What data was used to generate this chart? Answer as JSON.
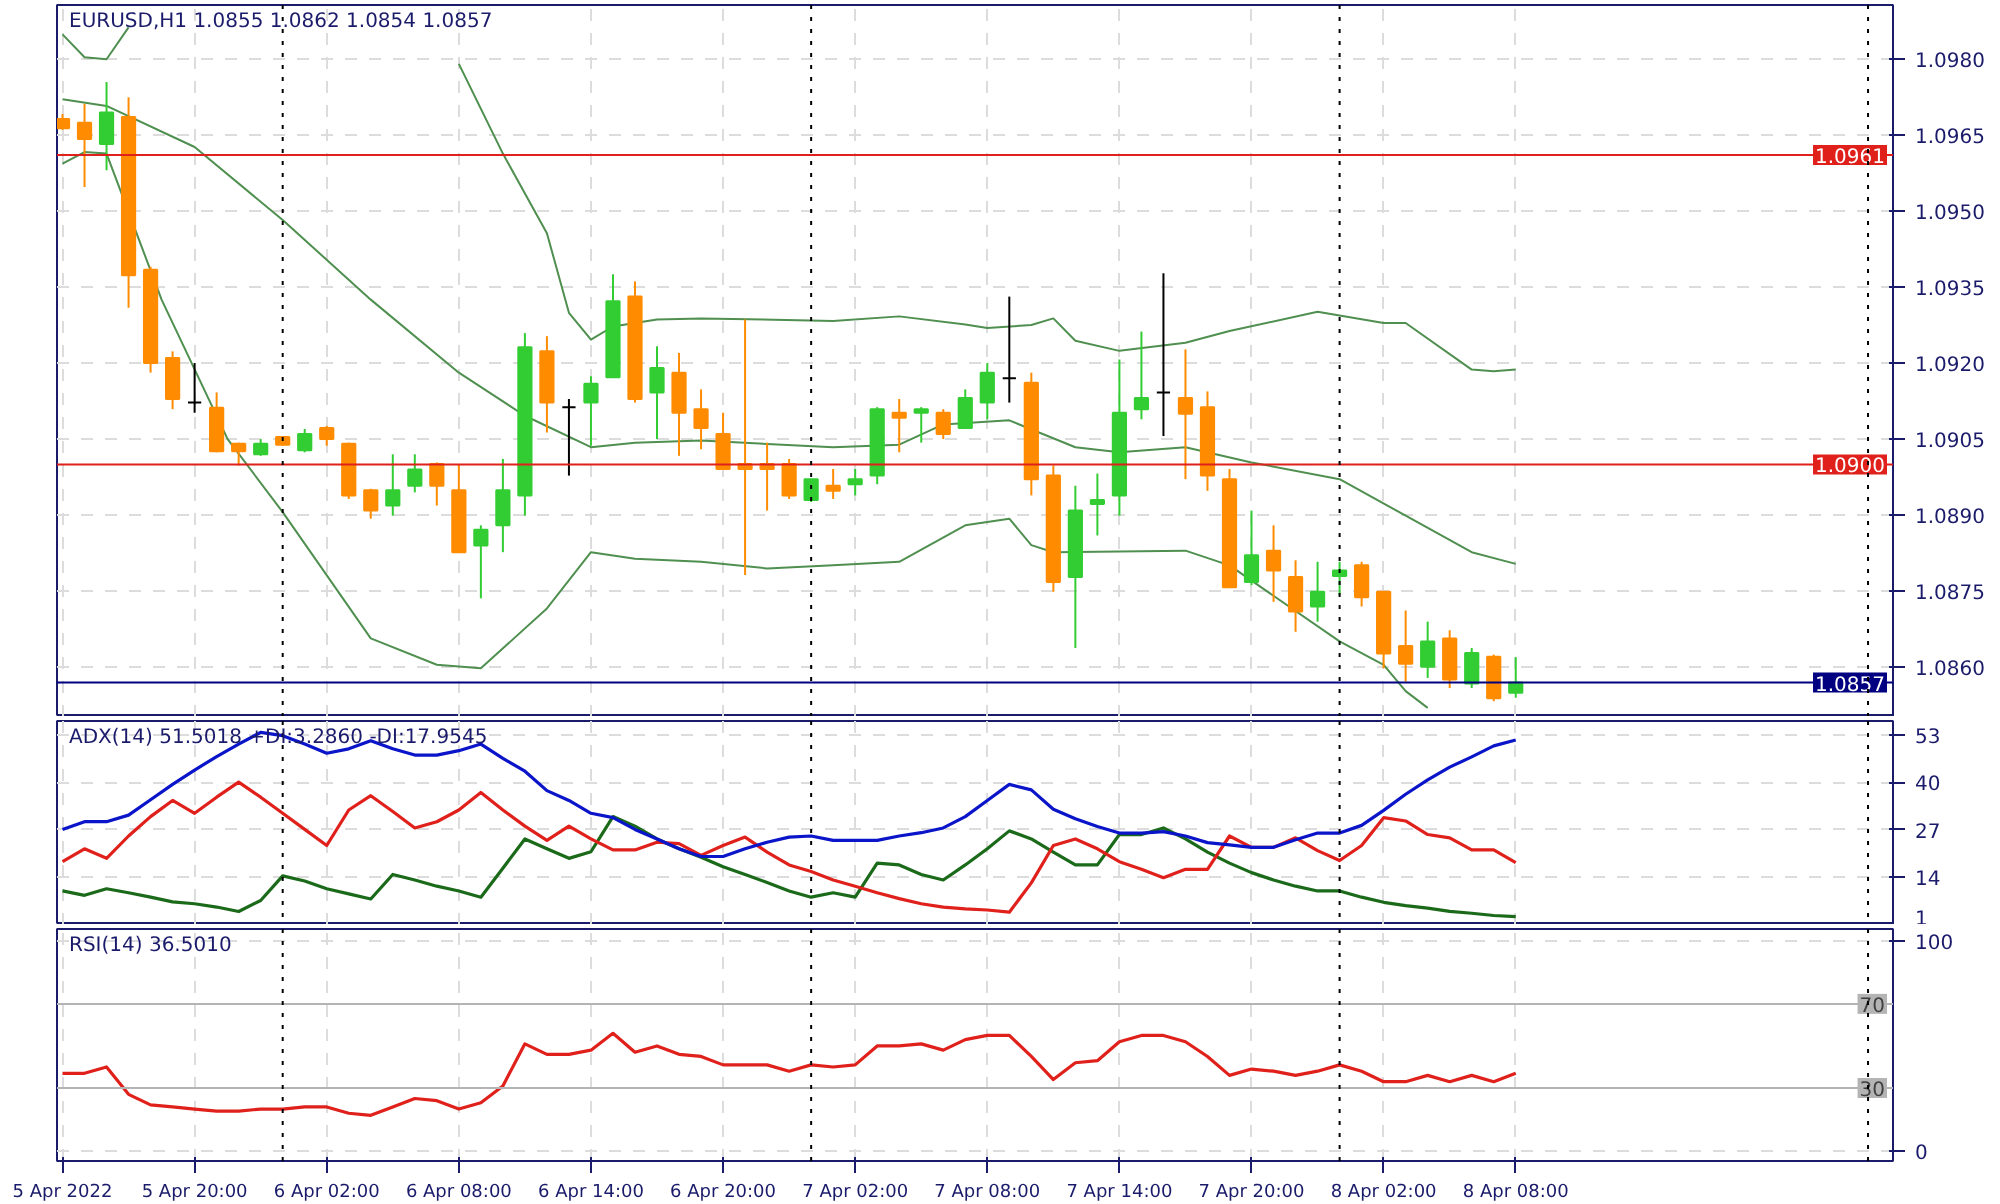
{
  "chart_data": [
    {
      "type": "candlestick",
      "title": "EURUSD,H1  1.0855 1.0862 1.0854 1.0857",
      "x": [
        "2022-04-05T14:00",
        "2022-04-05T15:00",
        "2022-04-05T16:00",
        "2022-04-05T17:00",
        "2022-04-05T18:00",
        "2022-04-05T19:00",
        "2022-04-05T20:00",
        "2022-04-05T21:00",
        "2022-04-05T22:00",
        "2022-04-05T23:00",
        "2022-04-06T00:00",
        "2022-04-06T01:00",
        "2022-04-06T02:00",
        "2022-04-06T03:00",
        "2022-04-06T04:00",
        "2022-04-06T05:00",
        "2022-04-06T06:00",
        "2022-04-06T07:00",
        "2022-04-06T08:00",
        "2022-04-06T09:00",
        "2022-04-06T10:00",
        "2022-04-06T11:00",
        "2022-04-06T12:00",
        "2022-04-06T13:00",
        "2022-04-06T14:00",
        "2022-04-06T15:00",
        "2022-04-06T16:00",
        "2022-04-06T17:00",
        "2022-04-06T18:00",
        "2022-04-06T19:00",
        "2022-04-06T20:00",
        "2022-04-06T21:00",
        "2022-04-06T22:00",
        "2022-04-06T23:00",
        "2022-04-07T00:00",
        "2022-04-07T01:00",
        "2022-04-07T02:00",
        "2022-04-07T03:00",
        "2022-04-07T04:00",
        "2022-04-07T05:00",
        "2022-04-07T06:00",
        "2022-04-07T07:00",
        "2022-04-07T08:00",
        "2022-04-07T09:00",
        "2022-04-07T10:00",
        "2022-04-07T11:00",
        "2022-04-07T12:00",
        "2022-04-07T13:00",
        "2022-04-07T14:00",
        "2022-04-07T15:00",
        "2022-04-07T16:00",
        "2022-04-07T17:00",
        "2022-04-07T18:00",
        "2022-04-07T19:00",
        "2022-04-07T20:00",
        "2022-04-07T21:00",
        "2022-04-07T22:00",
        "2022-04-07T23:00",
        "2022-04-08T00:00",
        "2022-04-08T01:00",
        "2022-04-08T02:00",
        "2022-04-08T03:00",
        "2022-04-08T04:00",
        "2022-04-08T05:00",
        "2022-04-08T06:00",
        "2022-04-08T07:00",
        "2022-04-08T08:00"
      ],
      "ohlc": [
        [
          1.09681,
          1.09691,
          1.0966,
          1.09663
        ],
        [
          1.09674,
          1.09711,
          1.09547,
          1.09642
        ],
        [
          1.09632,
          1.09754,
          1.0958,
          1.09694
        ],
        [
          1.09685,
          1.09724,
          1.09309,
          1.09373
        ],
        [
          1.09384,
          1.0939,
          1.09181,
          1.092
        ],
        [
          1.0921,
          1.09223,
          1.09109,
          1.09129
        ],
        [
          1.09122,
          1.092,
          1.09102,
          1.09122
        ],
        [
          1.09112,
          1.09142,
          1.09024,
          1.09026
        ],
        [
          1.09041,
          1.09043,
          1.08998,
          1.09026
        ],
        [
          1.0902,
          1.0905,
          1.09017,
          1.09041
        ],
        [
          1.09054,
          1.09056,
          1.09037,
          1.09039
        ],
        [
          1.09028,
          1.0907,
          1.09024,
          1.0906
        ],
        [
          1.09072,
          1.09076,
          1.09037,
          1.0905
        ],
        [
          1.09041,
          1.09043,
          1.08932,
          1.08939
        ],
        [
          1.08949,
          1.08952,
          1.08893,
          1.08909
        ],
        [
          1.08919,
          1.0902,
          1.08899,
          1.08949
        ],
        [
          1.08958,
          1.0902,
          1.08945,
          1.0899
        ],
        [
          1.09001,
          1.09004,
          1.08919,
          1.08958
        ],
        [
          1.08949,
          1.09001,
          1.08827,
          1.08827
        ],
        [
          1.0884,
          1.0888,
          1.08736,
          1.08871
        ],
        [
          1.0888,
          1.09011,
          1.08827,
          1.08949
        ],
        [
          1.08939,
          1.09259,
          1.08899,
          1.09231
        ],
        [
          1.09223,
          1.09253,
          1.09063,
          1.09122
        ],
        [
          1.09113,
          1.09129,
          1.08978,
          1.09113
        ],
        [
          1.09122,
          1.09174,
          1.09037,
          1.09159
        ],
        [
          1.09172,
          1.09375,
          1.09172,
          1.09322
        ],
        [
          1.09331,
          1.09361,
          1.09122,
          1.09129
        ],
        [
          1.09142,
          1.09233,
          1.0905,
          1.0919
        ],
        [
          1.09181,
          1.0922,
          1.09017,
          1.09102
        ],
        [
          1.09109,
          1.09148,
          1.0903,
          1.09072
        ],
        [
          1.0906,
          1.09102,
          1.08991,
          1.08991
        ],
        [
          1.09001,
          1.09286,
          1.08782,
          1.08991
        ],
        [
          1.09001,
          1.09043,
          1.08909,
          1.08991
        ],
        [
          1.09001,
          1.09011,
          1.08932,
          1.08939
        ],
        [
          1.0893,
          1.08971,
          1.08926,
          1.08971
        ],
        [
          1.08958,
          1.08991,
          1.08932,
          1.08948
        ],
        [
          1.08961,
          1.08991,
          1.08939,
          1.08971
        ],
        [
          1.08978,
          1.09113,
          1.08961,
          1.09109
        ],
        [
          1.09102,
          1.09129,
          1.09024,
          1.09092
        ],
        [
          1.09102,
          1.09113,
          1.09043,
          1.09109
        ],
        [
          1.09102,
          1.09109,
          1.0905,
          1.0906
        ],
        [
          1.09072,
          1.09148,
          1.0907,
          1.09131
        ],
        [
          1.09122,
          1.092,
          1.09089,
          1.09181
        ],
        [
          1.0917,
          1.09331,
          1.09122,
          1.0917
        ],
        [
          1.09161,
          1.09181,
          1.08939,
          1.08971
        ],
        [
          1.08978,
          1.08998,
          1.08749,
          1.08768
        ],
        [
          1.08778,
          1.08958,
          1.08638,
          1.08909
        ],
        [
          1.08922,
          1.08982,
          1.0886,
          1.0893
        ],
        [
          1.08939,
          1.09207,
          1.08899,
          1.09102
        ],
        [
          1.09109,
          1.09262,
          1.09089,
          1.09131
        ],
        [
          1.09142,
          1.09377,
          1.09056,
          1.09142
        ],
        [
          1.09131,
          1.09227,
          1.08971,
          1.091
        ],
        [
          1.09113,
          1.09144,
          1.08948,
          1.08978
        ],
        [
          1.08971,
          1.08991,
          1.08758,
          1.08758
        ],
        [
          1.08768,
          1.08909,
          1.08762,
          1.08821
        ],
        [
          1.0883,
          1.0888,
          1.08729,
          1.08791
        ],
        [
          1.08778,
          1.08811,
          1.0867,
          1.0871
        ],
        [
          1.0872,
          1.08808,
          1.0869,
          1.08749
        ],
        [
          1.0878,
          1.08808,
          1.08742,
          1.08791
        ],
        [
          1.08801,
          1.08808,
          1.0872,
          1.08738
        ],
        [
          1.08749,
          1.08749,
          1.08598,
          1.08627
        ],
        [
          1.08642,
          1.08712,
          1.08572,
          1.08607
        ],
        [
          1.08601,
          1.0869,
          1.08579,
          1.08651
        ],
        [
          1.08657,
          1.08673,
          1.08559,
          1.08576
        ],
        [
          1.08568,
          1.08638,
          1.08559,
          1.08628
        ],
        [
          1.08621,
          1.08625,
          1.08533,
          1.08539
        ],
        [
          1.0855,
          1.0862,
          1.0854,
          1.0857
        ]
      ],
      "colors": [
        "#ff8c00",
        "#ff8c00",
        "#32cd32",
        "#ff8c00",
        "#ff8c00",
        "#ff8c00",
        "#000000",
        "#ff8c00",
        "#ff8c00",
        "#32cd32",
        "#ff8c00",
        "#32cd32",
        "#ff8c00",
        "#ff8c00",
        "#ff8c00",
        "#32cd32",
        "#32cd32",
        "#ff8c00",
        "#ff8c00",
        "#32cd32",
        "#32cd32",
        "#32cd32",
        "#ff8c00",
        "#000000",
        "#32cd32",
        "#32cd32",
        "#ff8c00",
        "#32cd32",
        "#ff8c00",
        "#ff8c00",
        "#ff8c00",
        "#ff8c00",
        "#ff8c00",
        "#ff8c00",
        "#32cd32",
        "#ff8c00",
        "#32cd32",
        "#32cd32",
        "#ff8c00",
        "#32cd32",
        "#ff8c00",
        "#32cd32",
        "#32cd32",
        "#000000",
        "#ff8c00",
        "#ff8c00",
        "#32cd32",
        "#32cd32",
        "#32cd32",
        "#32cd32",
        "#000000",
        "#ff8c00",
        "#ff8c00",
        "#ff8c00",
        "#32cd32",
        "#ff8c00",
        "#ff8c00",
        "#32cd32",
        "#32cd32",
        "#ff8c00",
        "#ff8c00",
        "#ff8c00",
        "#32cd32",
        "#ff8c00",
        "#32cd32",
        "#ff8c00",
        "#32cd32"
      ],
      "series": [
        {
          "type": "line",
          "color": "#4f8f4f",
          "x": [
            "2022-04-05T14:00",
            "2022-04-05T15:00",
            "2022-04-05T16:00",
            "2022-04-05T17:00",
            "2022-04-05T18:00",
            "2022-04-06T00:00",
            "2022-04-06T06:00",
            "2022-04-06T08:00",
            "2022-04-06T10:00",
            "2022-04-06T12:00",
            "2022-04-06T13:00",
            "2022-04-06T14:00",
            "2022-04-06T15:00",
            "2022-04-06T17:00",
            "2022-04-06T19:00",
            "2022-04-07T01:00",
            "2022-04-07T04:00",
            "2022-04-07T07:00",
            "2022-04-07T08:00",
            "2022-04-07T10:00",
            "2022-04-07T11:00",
            "2022-04-07T12:00",
            "2022-04-07T14:00",
            "2022-04-07T17:00",
            "2022-04-07T19:00",
            "2022-04-07T23:00",
            "2022-04-08T02:00",
            "2022-04-08T03:00",
            "2022-04-08T06:00",
            "2022-04-08T07:00",
            "2022-04-08T08:00"
          ],
          "values": [
            1.09848,
            1.09803,
            1.09799,
            1.09862,
            null,
            null,
            null,
            1.0979,
            1.09613,
            1.09456,
            1.09299,
            1.09246,
            1.09272,
            1.09286,
            1.09288,
            1.09283,
            1.09292,
            1.09276,
            1.09269,
            1.09275,
            1.09288,
            1.09244,
            1.09224,
            1.0924,
            1.09263,
            1.09301,
            1.09279,
            1.09279,
            1.09187,
            1.09184,
            1.09187
          ]
        },
        {
          "type": "line",
          "color": "#4f8f4f",
          "x": [
            "2022-04-05T14:00",
            "2022-04-05T16:00",
            "2022-04-05T20:00",
            "2022-04-06T00:00",
            "2022-04-06T04:00",
            "2022-04-06T08:00",
            "2022-04-06T11:00",
            "2022-04-06T14:00",
            "2022-04-06T16:00",
            "2022-04-06T19:00",
            "2022-04-07T01:00",
            "2022-04-07T04:00",
            "2022-04-07T06:00",
            "2022-04-07T09:00",
            "2022-04-07T12:00",
            "2022-04-07T14:00",
            "2022-04-07T17:00",
            "2022-04-07T20:00",
            "2022-04-08T00:00",
            "2022-04-08T03:00",
            "2022-04-08T06:00",
            "2022-04-08T08:00"
          ],
          "values": [
            1.0972,
            1.09707,
            1.09626,
            1.09482,
            1.09325,
            1.09181,
            1.09096,
            1.09034,
            1.09043,
            1.09047,
            1.09034,
            1.09039,
            1.09079,
            1.09087,
            1.09034,
            1.09024,
            1.09034,
            1.09004,
            1.08971,
            1.08899,
            1.08827,
            1.08804
          ]
        },
        {
          "type": "line",
          "color": "#4f8f4f",
          "x": [
            "2022-04-05T14:00",
            "2022-04-05T15:00",
            "2022-04-05T16:00",
            "2022-04-05T18:30",
            "2022-04-05T21:30",
            "2022-04-06T00:00",
            "2022-04-06T04:00",
            "2022-04-06T07:00",
            "2022-04-06T09:00",
            "2022-04-06T12:00",
            "2022-04-06T14:00",
            "2022-04-06T16:00",
            "2022-04-06T19:00",
            "2022-04-06T22:00",
            "2022-04-07T01:00",
            "2022-04-07T04:00",
            "2022-04-07T07:00",
            "2022-04-07T09:00",
            "2022-04-07T10:00",
            "2022-04-07T11:00",
            "2022-04-07T17:00",
            "2022-04-07T19:00",
            "2022-04-08T00:00",
            "2022-04-08T02:00",
            "2022-04-08T03:00",
            "2022-04-08T04:00"
          ],
          "values": [
            1.09593,
            1.09616,
            1.09613,
            1.09325,
            1.0905,
            1.08906,
            1.08657,
            1.08605,
            1.08598,
            1.08716,
            1.08827,
            1.08814,
            1.08808,
            1.08795,
            1.08801,
            1.08808,
            1.0888,
            1.08893,
            1.08841,
            1.08827,
            1.0883,
            1.08801,
            1.08651,
            1.08605,
            1.08553,
            1.0852
          ]
        }
      ],
      "ylim": [
        1.08502,
        1.09906
      ],
      "yticks": [
        {
          "value": 1.086,
          "label": "1.0860"
        },
        1.0875,
        {
          "value": 1.089,
          "label": "1.0890"
        },
        1.0905,
        {
          "value": 1.092,
          "label": "1.0920"
        },
        1.0935,
        {
          "value": 1.095,
          "label": "1.0950"
        },
        1.0965,
        {
          "value": 1.098,
          "label": "1.0980"
        }
      ],
      "xlim": [
        "2022-04-05T13:45",
        "2022-04-09T01:08"
      ],
      "xticks": [
        {
          "value": "2022-04-05T14:00",
          "label": null
        },
        {
          "value": "2022-04-05T20:00",
          "label": null
        },
        {
          "value": "2022-04-06T02:00",
          "label": null
        },
        {
          "value": "2022-04-06T08:00",
          "label": null
        },
        {
          "value": "2022-04-06T14:00",
          "label": null
        },
        {
          "value": "2022-04-06T20:00",
          "label": null
        },
        {
          "value": "2022-04-07T02:00",
          "label": null
        },
        {
          "value": "2022-04-07T08:00",
          "label": null
        },
        {
          "value": "2022-04-07T14:00",
          "label": null
        },
        {
          "value": "2022-04-07T20:00",
          "label": null
        },
        {
          "value": "2022-04-08T02:00",
          "label": null
        },
        {
          "value": "2022-04-08T08:00",
          "label": null
        }
      ],
      "ref_lines": [
        {
          "axis": "y",
          "value": 1.0961,
          "label": "1.0961",
          "color": "#e0201b"
        },
        {
          "axis": "y",
          "value": 1.09,
          "label": "1.0900",
          "color": "#e0201b"
        },
        {
          "axis": "y",
          "value": 1.0857,
          "label": "1.0857",
          "color": "#000080"
        },
        {
          "axis": "x",
          "value": "2022-04-06T00:00",
          "color": "#000000",
          "line_style": "dotted"
        },
        {
          "axis": "x",
          "value": "2022-04-07T00:00",
          "color": "#000000",
          "line_style": "dotted"
        },
        {
          "axis": "x",
          "value": "2022-04-08T00:00",
          "color": "#000000",
          "line_style": "dotted"
        },
        {
          "axis": "x",
          "value": "2022-04-09T00:00",
          "color": "#000000",
          "line_style": "dotted"
        }
      ],
      "grid": true,
      "tick_labels": "y"
    },
    {
      "type": "line",
      "title": "ADX(14) 51.5018 +DI:3.2860 -DI:17.9545",
      "x": [
        "2022-04-05T14:00",
        "2022-04-05T15:00",
        "2022-04-05T16:00",
        "2022-04-05T17:00",
        "2022-04-05T18:00",
        "2022-04-05T19:00",
        "2022-04-05T20:00",
        "2022-04-05T21:00",
        "2022-04-05T22:00",
        "2022-04-05T23:00",
        "2022-04-06T00:00",
        "2022-04-06T01:00",
        "2022-04-06T02:00",
        "2022-04-06T03:00",
        "2022-04-06T04:00",
        "2022-04-06T05:00",
        "2022-04-06T06:00",
        "2022-04-06T07:00",
        "2022-04-06T08:00",
        "2022-04-06T09:00",
        "2022-04-06T10:00",
        "2022-04-06T11:00",
        "2022-04-06T12:00",
        "2022-04-06T13:00",
        "2022-04-06T14:00",
        "2022-04-06T15:00",
        "2022-04-06T16:00",
        "2022-04-06T17:00",
        "2022-04-06T18:00",
        "2022-04-06T19:00",
        "2022-04-06T20:00",
        "2022-04-06T21:00",
        "2022-04-06T22:00",
        "2022-04-06T23:00",
        "2022-04-07T00:00",
        "2022-04-07T01:00",
        "2022-04-07T02:00",
        "2022-04-07T03:00",
        "2022-04-07T04:00",
        "2022-04-07T05:00",
        "2022-04-07T06:00",
        "2022-04-07T07:00",
        "2022-04-07T08:00",
        "2022-04-07T09:00",
        "2022-04-07T10:00",
        "2022-04-07T11:00",
        "2022-04-07T12:00",
        "2022-04-07T13:00",
        "2022-04-07T14:00",
        "2022-04-07T15:00",
        "2022-04-07T16:00",
        "2022-04-07T17:00",
        "2022-04-07T18:00",
        "2022-04-07T19:00",
        "2022-04-07T20:00",
        "2022-04-07T21:00",
        "2022-04-07T22:00",
        "2022-04-07T23:00",
        "2022-04-08T00:00",
        "2022-04-08T01:00",
        "2022-04-08T02:00",
        "2022-04-08T03:00",
        "2022-04-08T04:00",
        "2022-04-08T05:00",
        "2022-04-08T06:00",
        "2022-04-08T07:00",
        "2022-04-08T08:00"
      ],
      "series": [
        {
          "color": "#1a6a1a",
          "values": [
            10.3,
            9.1,
            10.9,
            9.8,
            8.6,
            7.3,
            6.8,
            5.9,
            4.7,
            7.7,
            14.4,
            13.0,
            10.9,
            9.5,
            8.1,
            14.8,
            13.3,
            11.6,
            10.3,
            8.6,
            16.5,
            24.5,
            21.8,
            19.2,
            21.0,
            30.6,
            28.0,
            24.5,
            21.8,
            19.5,
            16.9,
            14.8,
            12.6,
            10.3,
            8.6,
            9.8,
            8.6,
            17.9,
            17.4,
            14.8,
            13.3,
            17.4,
            21.8,
            26.7,
            24.5,
            20.9,
            17.4,
            17.4,
            25.7,
            25.7,
            27.5,
            24.5,
            20.9,
            17.9,
            15.3,
            13.3,
            11.6,
            10.3,
            10.3,
            8.6,
            7.2,
            6.3,
            5.6,
            4.7,
            4.2,
            3.6,
            3.3
          ]
        },
        {
          "color": "#e0201b",
          "values": [
            18.3,
            21.8,
            19.2,
            25.3,
            30.6,
            35.0,
            31.5,
            35.9,
            40.0,
            35.9,
            31.5,
            27.1,
            22.7,
            32.4,
            36.3,
            32.0,
            27.5,
            29.2,
            32.4,
            37.2,
            32.4,
            28.0,
            24.1,
            28.0,
            24.5,
            21.5,
            21.5,
            23.6,
            23.2,
            20.0,
            22.7,
            25.0,
            20.9,
            17.4,
            15.6,
            13.3,
            11.6,
            9.8,
            8.2,
            6.8,
            5.9,
            5.4,
            5.1,
            4.5,
            12.5,
            22.7,
            24.5,
            21.8,
            18.3,
            16.2,
            13.9,
            16.2,
            16.2,
            25.3,
            22.2,
            22.2,
            24.8,
            21.3,
            18.6,
            22.7,
            30.3,
            29.4,
            25.7,
            24.8,
            21.5,
            21.5,
            18.0
          ]
        },
        {
          "color": "#0a14c8",
          "values": [
            27.1,
            29.2,
            29.2,
            31.0,
            35.2,
            39.4,
            43.3,
            47.0,
            50.4,
            53.6,
            52.7,
            50.4,
            47.9,
            49.1,
            51.3,
            49.1,
            47.4,
            47.4,
            48.6,
            50.4,
            46.5,
            43.0,
            37.7,
            35.0,
            31.5,
            30.3,
            27.1,
            24.5,
            21.8,
            19.7,
            19.7,
            21.8,
            23.6,
            25.0,
            25.3,
            24.1,
            24.1,
            24.1,
            25.3,
            26.2,
            27.5,
            30.6,
            35.0,
            39.4,
            37.9,
            32.6,
            30.0,
            27.9,
            26.1,
            26.1,
            26.5,
            25.3,
            23.5,
            22.9,
            22.2,
            22.2,
            24.3,
            26.1,
            26.1,
            28.2,
            32.3,
            36.7,
            40.6,
            44.1,
            46.9,
            49.9,
            51.5
          ]
        }
      ],
      "ylim": [
        1,
        56.7
      ],
      "yticks": [
        1,
        14,
        27,
        40,
        53
      ],
      "xlim": [
        "2022-04-05T13:45",
        "2022-04-09T01:08"
      ],
      "xticks": [
        {
          "value": "2022-04-05T14:00",
          "label": null
        },
        {
          "value": "2022-04-05T20:00",
          "label": null
        },
        {
          "value": "2022-04-06T02:00",
          "label": null
        },
        {
          "value": "2022-04-06T08:00",
          "label": null
        },
        {
          "value": "2022-04-06T14:00",
          "label": null
        },
        {
          "value": "2022-04-06T20:00",
          "label": null
        },
        {
          "value": "2022-04-07T02:00",
          "label": null
        },
        {
          "value": "2022-04-07T08:00",
          "label": null
        },
        {
          "value": "2022-04-07T14:00",
          "label": null
        },
        {
          "value": "2022-04-07T20:00",
          "label": null
        },
        {
          "value": "2022-04-08T02:00",
          "label": null
        },
        {
          "value": "2022-04-08T08:00",
          "label": null
        }
      ],
      "ref_lines": [
        {
          "axis": "x",
          "value": "2022-04-06T00:00",
          "color": "#000000",
          "line_style": "dotted"
        },
        {
          "axis": "x",
          "value": "2022-04-07T00:00",
          "color": "#000000",
          "line_style": "dotted"
        },
        {
          "axis": "x",
          "value": "2022-04-08T00:00",
          "color": "#000000",
          "line_style": "dotted"
        },
        {
          "axis": "x",
          "value": "2022-04-09T00:00",
          "color": "#000000",
          "line_style": "dotted"
        }
      ],
      "grid": true,
      "tick_labels": "y"
    },
    {
      "type": "line",
      "title": "RSI(14) 36.5010",
      "x": [
        "2022-04-05T14:00",
        "2022-04-05T15:00",
        "2022-04-05T16:00",
        "2022-04-05T17:00",
        "2022-04-05T18:00",
        "2022-04-05T19:00",
        "2022-04-05T20:00",
        "2022-04-05T21:00",
        "2022-04-05T22:00",
        "2022-04-05T23:00",
        "2022-04-06T00:00",
        "2022-04-06T01:00",
        "2022-04-06T02:00",
        "2022-04-06T03:00",
        "2022-04-06T04:00",
        "2022-04-06T05:00",
        "2022-04-06T06:00",
        "2022-04-06T07:00",
        "2022-04-06T08:00",
        "2022-04-06T09:00",
        "2022-04-06T10:00",
        "2022-04-06T11:00",
        "2022-04-06T12:00",
        "2022-04-06T13:00",
        "2022-04-06T14:00",
        "2022-04-06T15:00",
        "2022-04-06T16:00",
        "2022-04-06T17:00",
        "2022-04-06T18:00",
        "2022-04-06T19:00",
        "2022-04-06T20:00",
        "2022-04-06T21:00",
        "2022-04-06T22:00",
        "2022-04-06T23:00",
        "2022-04-07T00:00",
        "2022-04-07T01:00",
        "2022-04-07T02:00",
        "2022-04-07T03:00",
        "2022-04-07T04:00",
        "2022-04-07T05:00",
        "2022-04-07T06:00",
        "2022-04-07T07:00",
        "2022-04-07T08:00",
        "2022-04-07T09:00",
        "2022-04-07T10:00",
        "2022-04-07T11:00",
        "2022-04-07T12:00",
        "2022-04-07T13:00",
        "2022-04-07T14:00",
        "2022-04-07T15:00",
        "2022-04-07T16:00",
        "2022-04-07T17:00",
        "2022-04-07T18:00",
        "2022-04-07T19:00",
        "2022-04-07T20:00",
        "2022-04-07T21:00",
        "2022-04-07T22:00",
        "2022-04-07T23:00",
        "2022-04-08T00:00",
        "2022-04-08T01:00",
        "2022-04-08T02:00",
        "2022-04-08T03:00",
        "2022-04-08T04:00",
        "2022-04-08T05:00",
        "2022-04-08T06:00",
        "2022-04-08T07:00",
        "2022-04-08T08:00"
      ],
      "series": [
        {
          "color": "#e0201b",
          "values": [
            37,
            37,
            40,
            27,
            22,
            21,
            20,
            19,
            19,
            20,
            20,
            21,
            21,
            18,
            17,
            21,
            25,
            24,
            20,
            23,
            31,
            51,
            46,
            46,
            48,
            56,
            47,
            50,
            46,
            45,
            41,
            41,
            41,
            38,
            41,
            40,
            41,
            50,
            50,
            51,
            48,
            53,
            55,
            55,
            45,
            34,
            42,
            43,
            52,
            55,
            55,
            52,
            45,
            36,
            39,
            38,
            36,
            38,
            41,
            38,
            33,
            33,
            36,
            33,
            36,
            33,
            37
          ]
        }
      ],
      "ylim": [
        -4.7,
        105.6
      ],
      "yticks": [
        0,
        100
      ],
      "xlim": [
        "2022-04-05T13:45",
        "2022-04-09T01:08"
      ],
      "xticks": [
        {
          "value": "2022-04-05T14:00",
          "label": "5 Apr 2022"
        },
        {
          "value": "2022-04-05T20:00",
          "label": "5 Apr 20:00"
        },
        {
          "value": "2022-04-06T02:00",
          "label": "6 Apr 02:00"
        },
        {
          "value": "2022-04-06T08:00",
          "label": "6 Apr 08:00"
        },
        {
          "value": "2022-04-06T14:00",
          "label": "6 Apr 14:00"
        },
        {
          "value": "2022-04-06T20:00",
          "label": "6 Apr 20:00"
        },
        {
          "value": "2022-04-07T02:00",
          "label": "7 Apr 02:00"
        },
        {
          "value": "2022-04-07T08:00",
          "label": "7 Apr 08:00"
        },
        {
          "value": "2022-04-07T14:00",
          "label": "7 Apr 14:00"
        },
        {
          "value": "2022-04-07T20:00",
          "label": "7 Apr 20:00"
        },
        {
          "value": "2022-04-08T02:00",
          "label": "8 Apr 02:00"
        },
        {
          "value": "2022-04-08T08:00",
          "label": "8 Apr 08:00"
        }
      ],
      "ref_lines": [
        {
          "axis": "y",
          "value": 70,
          "label": "70",
          "color": "#b4b4b4"
        },
        {
          "axis": "y",
          "value": 30,
          "label": "30",
          "color": "#b4b4b4"
        },
        {
          "axis": "x",
          "value": "2022-04-06T00:00",
          "color": "#000000",
          "line_style": "dotted"
        },
        {
          "axis": "x",
          "value": "2022-04-07T00:00",
          "color": "#000000",
          "line_style": "dotted"
        },
        {
          "axis": "x",
          "value": "2022-04-08T00:00",
          "color": "#000000",
          "line_style": "dotted"
        },
        {
          "axis": "x",
          "value": "2022-04-09T00:00",
          "color": "#000000",
          "line_style": "dotted"
        }
      ],
      "grid": true
    }
  ]
}
